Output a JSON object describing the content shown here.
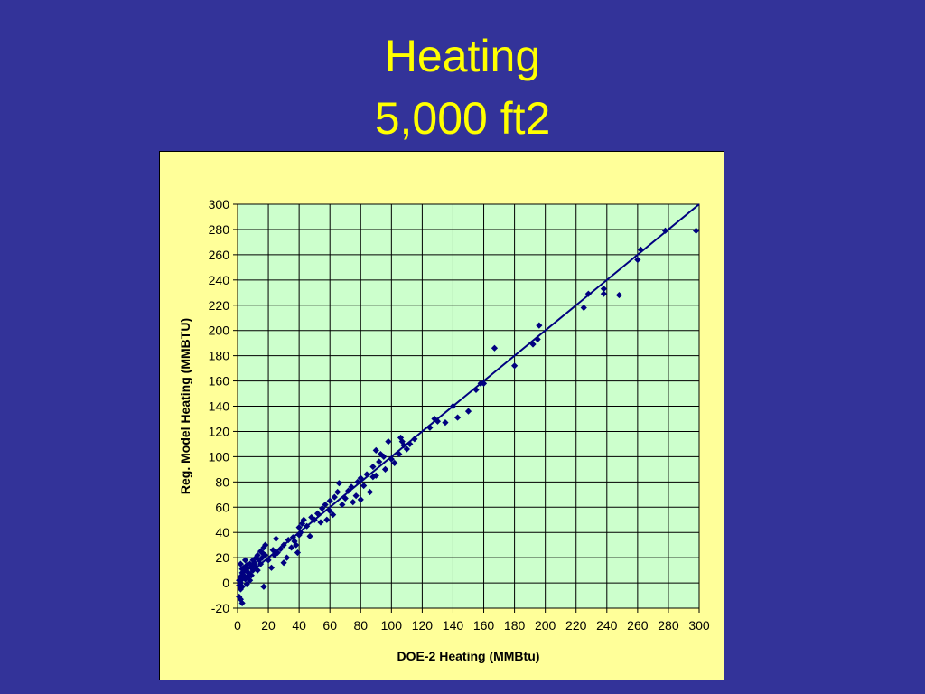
{
  "slide": {
    "title_line1": "Heating",
    "title_line2": "5,000 ft2"
  },
  "colors": {
    "background": "#333399",
    "title": "#ffff00",
    "chart_area": "#ffff99",
    "plot_area": "#ccffcc",
    "markers": "#000080",
    "trendline": "#000080"
  },
  "chart_data": {
    "type": "scatter",
    "title": "",
    "xlabel": "DOE-2 Heating (MMBtu)",
    "ylabel": "Reg. Model Heating (MMBTU)",
    "xlim": [
      0,
      300
    ],
    "ylim": [
      -20,
      300
    ],
    "xticks": [
      0,
      20,
      40,
      60,
      80,
      100,
      120,
      140,
      160,
      180,
      200,
      220,
      240,
      260,
      280,
      300
    ],
    "yticks": [
      -20,
      0,
      20,
      40,
      60,
      80,
      100,
      120,
      140,
      160,
      180,
      200,
      220,
      240,
      260,
      280,
      300
    ],
    "grid": true,
    "legend": "none",
    "marker": "diamond",
    "trendline": {
      "x": [
        0,
        300
      ],
      "y": [
        0,
        300
      ]
    },
    "points": [
      [
        1,
        -11
      ],
      [
        2,
        -13
      ],
      [
        3,
        -16
      ],
      [
        2,
        -5
      ],
      [
        1,
        -2
      ],
      [
        2,
        0
      ],
      [
        1,
        2
      ],
      [
        3,
        3
      ],
      [
        2,
        5
      ],
      [
        4,
        6
      ],
      [
        3,
        8
      ],
      [
        5,
        10
      ],
      [
        4,
        12
      ],
      [
        6,
        14
      ],
      [
        2,
        15
      ],
      [
        5,
        3
      ],
      [
        7,
        5
      ],
      [
        3,
        -3
      ],
      [
        6,
        -1
      ],
      [
        8,
        2
      ],
      [
        5,
        18
      ],
      [
        7,
        8
      ],
      [
        9,
        12
      ],
      [
        8,
        15
      ],
      [
        10,
        10
      ],
      [
        4,
        9
      ],
      [
        6,
        11
      ],
      [
        11,
        14
      ],
      [
        3,
        11
      ],
      [
        9,
        6
      ],
      [
        10,
        18
      ],
      [
        12,
        20
      ],
      [
        13,
        22
      ],
      [
        14,
        18
      ],
      [
        15,
        25
      ],
      [
        16,
        24
      ],
      [
        17,
        28
      ],
      [
        18,
        30
      ],
      [
        13,
        10
      ],
      [
        11,
        16
      ],
      [
        15,
        15
      ],
      [
        16,
        20
      ],
      [
        17,
        -3
      ],
      [
        18,
        22
      ],
      [
        20,
        18
      ],
      [
        22,
        12
      ],
      [
        23,
        26
      ],
      [
        24,
        22
      ],
      [
        25,
        35
      ],
      [
        26,
        24
      ],
      [
        28,
        27
      ],
      [
        30,
        30
      ],
      [
        30,
        16
      ],
      [
        32,
        20
      ],
      [
        33,
        34
      ],
      [
        35,
        28
      ],
      [
        36,
        36
      ],
      [
        37,
        33
      ],
      [
        38,
        30
      ],
      [
        39,
        24
      ],
      [
        40,
        38
      ],
      [
        40,
        44
      ],
      [
        41,
        40
      ],
      [
        42,
        47
      ],
      [
        43,
        50
      ],
      [
        45,
        45
      ],
      [
        47,
        37
      ],
      [
        48,
        52
      ],
      [
        50,
        50
      ],
      [
        52,
        55
      ],
      [
        54,
        48
      ],
      [
        55,
        59
      ],
      [
        57,
        62
      ],
      [
        58,
        50
      ],
      [
        60,
        57
      ],
      [
        60,
        65
      ],
      [
        62,
        54
      ],
      [
        63,
        68
      ],
      [
        65,
        72
      ],
      [
        66,
        79
      ],
      [
        68,
        62
      ],
      [
        70,
        67
      ],
      [
        72,
        73
      ],
      [
        74,
        76
      ],
      [
        75,
        64
      ],
      [
        77,
        69
      ],
      [
        78,
        80
      ],
      [
        80,
        83
      ],
      [
        80,
        66
      ],
      [
        82,
        77
      ],
      [
        84,
        86
      ],
      [
        86,
        72
      ],
      [
        88,
        84
      ],
      [
        88,
        92
      ],
      [
        90,
        85
      ],
      [
        90,
        105
      ],
      [
        92,
        96
      ],
      [
        93,
        102
      ],
      [
        95,
        100
      ],
      [
        96,
        90
      ],
      [
        98,
        112
      ],
      [
        100,
        98
      ],
      [
        102,
        95
      ],
      [
        105,
        102
      ],
      [
        106,
        115
      ],
      [
        107,
        112
      ],
      [
        108,
        109
      ],
      [
        110,
        106
      ],
      [
        112,
        110
      ],
      [
        115,
        114
      ],
      [
        125,
        123
      ],
      [
        128,
        130
      ],
      [
        130,
        128
      ],
      [
        135,
        127
      ],
      [
        140,
        140
      ],
      [
        143,
        131
      ],
      [
        150,
        136
      ],
      [
        155,
        153
      ],
      [
        158,
        158
      ],
      [
        160,
        158
      ],
      [
        167,
        186
      ],
      [
        180,
        172
      ],
      [
        192,
        189
      ],
      [
        195,
        193
      ],
      [
        196,
        204
      ],
      [
        225,
        218
      ],
      [
        228,
        229
      ],
      [
        238,
        233
      ],
      [
        238,
        229
      ],
      [
        248,
        228
      ],
      [
        260,
        256
      ],
      [
        262,
        264
      ],
      [
        278,
        279
      ],
      [
        298,
        279
      ]
    ]
  }
}
